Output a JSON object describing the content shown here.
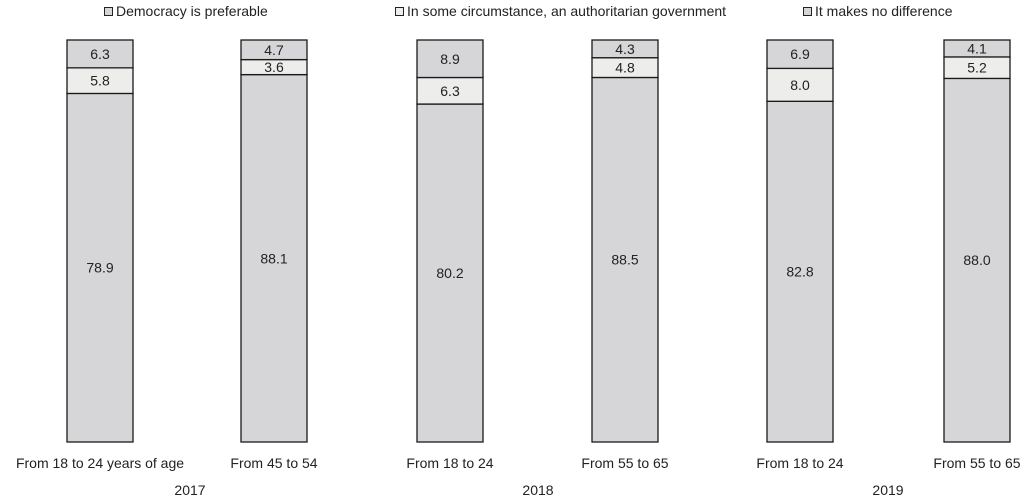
{
  "chart_data": {
    "type": "bar",
    "stacked": true,
    "normalized": true,
    "categories": [
      "From 18 to 24 years of age",
      "From 45 to 54",
      "From 18 to 24",
      "From 55 to 65",
      "From 18 to 24",
      "From 55 to 65"
    ],
    "groups": [
      {
        "label": "2017",
        "categories": [
          0,
          1
        ]
      },
      {
        "label": "2018",
        "categories": [
          2,
          3
        ]
      },
      {
        "label": "2019",
        "categories": [
          4,
          5
        ]
      }
    ],
    "series": [
      {
        "name": "Democracy is preferable",
        "color": "#d6d6d8",
        "values": [
          78.9,
          88.1,
          80.2,
          88.5,
          82.8,
          88.0
        ]
      },
      {
        "name": "In some circumstance, an authoritarian government",
        "color": "#ededec",
        "values": [
          5.8,
          3.6,
          6.3,
          4.8,
          8.0,
          5.2
        ]
      },
      {
        "name": "It makes no difference",
        "color": "#d6d6d8",
        "values": [
          6.3,
          4.7,
          8.9,
          4.3,
          6.9,
          4.1
        ]
      }
    ],
    "legend_position": "top",
    "grid": false,
    "title": "",
    "xlabel": "",
    "ylabel": ""
  }
}
